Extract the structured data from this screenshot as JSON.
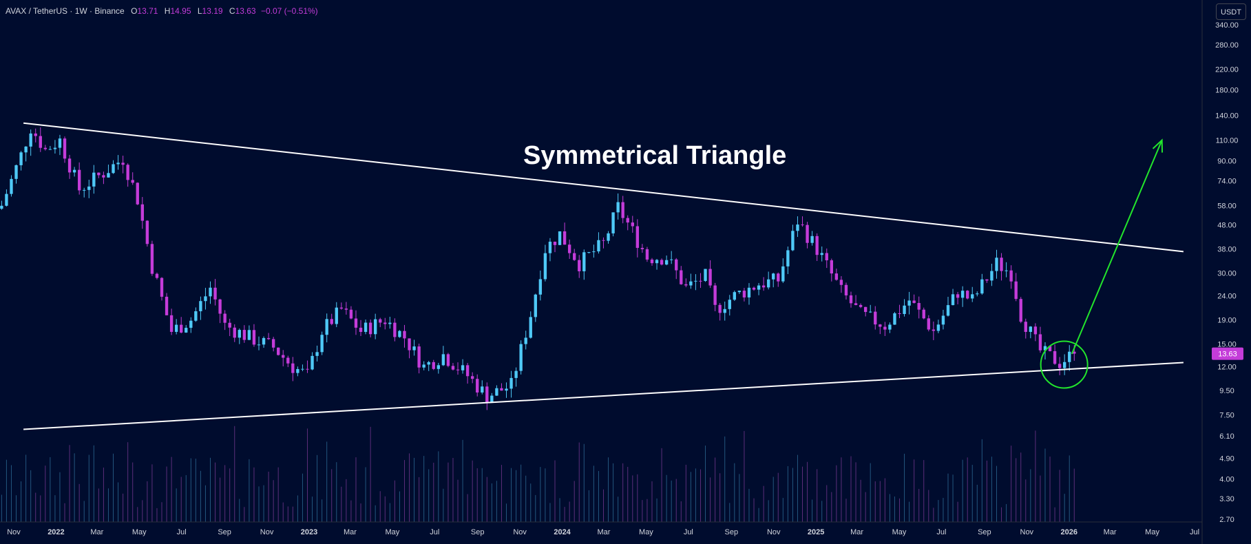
{
  "legend": {
    "symbol": "AVAX / TetherUS · 1W · Binance",
    "o_key": "O",
    "o_val": "13.71",
    "h_key": "H",
    "h_val": "14.95",
    "l_key": "L",
    "l_val": "13.19",
    "c_key": "C",
    "c_val": "13.63",
    "change": "−0.07 (−0.51%)"
  },
  "currency_button": "USDT",
  "annotation_title": "Symmetrical Triangle",
  "colors": {
    "background": "#000c2e",
    "bull": "#4fc9f7",
    "bear": "#c43cd9",
    "trendline": "#ffffff",
    "projection": "#22e52c",
    "last_price_bg": "#c43cd9"
  },
  "chart_data": {
    "type": "candlestick",
    "scale": "log",
    "interval": "1W",
    "ylim": [
      2.7,
      350
    ],
    "y_ticks": [
      340,
      280,
      220,
      180,
      140,
      110,
      90,
      74,
      58,
      48,
      38,
      30,
      24,
      19,
      15,
      12,
      9.5,
      7.5,
      6.1,
      4.9,
      4.0,
      3.3,
      2.7
    ],
    "y_tick_labels": [
      "340.00",
      "280.00",
      "220.00",
      "180.00",
      "140.00",
      "110.00",
      "90.00",
      "74.00",
      "58.00",
      "48.00",
      "38.00",
      "30.00",
      "24.00",
      "19.00",
      "15.00",
      "12.00",
      "9.50",
      "7.50",
      "6.10",
      "4.90",
      "4.00",
      "3.30",
      "2.70"
    ],
    "x_ticks": [
      {
        "date": "2021-11-01",
        "label": "Nov"
      },
      {
        "date": "2022-01-01",
        "label": "2022"
      },
      {
        "date": "2022-03-01",
        "label": "Mar"
      },
      {
        "date": "2022-05-01",
        "label": "May"
      },
      {
        "date": "2022-07-01",
        "label": "Jul"
      },
      {
        "date": "2022-09-01",
        "label": "Sep"
      },
      {
        "date": "2022-11-01",
        "label": "Nov"
      },
      {
        "date": "2023-01-01",
        "label": "2023"
      },
      {
        "date": "2023-03-01",
        "label": "Mar"
      },
      {
        "date": "2023-05-01",
        "label": "May"
      },
      {
        "date": "2023-07-01",
        "label": "Jul"
      },
      {
        "date": "2023-09-01",
        "label": "Sep"
      },
      {
        "date": "2023-11-01",
        "label": "Nov"
      },
      {
        "date": "2024-01-01",
        "label": "2024"
      },
      {
        "date": "2024-03-01",
        "label": "Mar"
      },
      {
        "date": "2024-05-01",
        "label": "May"
      },
      {
        "date": "2024-07-01",
        "label": "Jul"
      },
      {
        "date": "2024-09-01",
        "label": "Sep"
      },
      {
        "date": "2024-11-01",
        "label": "Nov"
      },
      {
        "date": "2025-01-01",
        "label": "2025"
      },
      {
        "date": "2025-03-01",
        "label": "Mar"
      },
      {
        "date": "2025-05-01",
        "label": "May"
      },
      {
        "date": "2025-07-01",
        "label": "Jul"
      },
      {
        "date": "2025-09-01",
        "label": "Sep"
      },
      {
        "date": "2025-11-01",
        "label": "Nov"
      },
      {
        "date": "2026-01-01",
        "label": "2026"
      },
      {
        "date": "2026-03-01",
        "label": "Mar"
      },
      {
        "date": "2026-05-01",
        "label": "May"
      },
      {
        "date": "2026-07-01",
        "label": "Jul"
      }
    ],
    "anchors": [
      {
        "date": "2021-10-11",
        "price": 58
      },
      {
        "date": "2021-11-08",
        "price": 95
      },
      {
        "date": "2021-11-22",
        "price": 125
      },
      {
        "date": "2021-12-13",
        "price": 100
      },
      {
        "date": "2022-01-03",
        "price": 110
      },
      {
        "date": "2022-01-31",
        "price": 68
      },
      {
        "date": "2022-03-07",
        "price": 80
      },
      {
        "date": "2022-04-04",
        "price": 92
      },
      {
        "date": "2022-04-25",
        "price": 62
      },
      {
        "date": "2022-05-16",
        "price": 32
      },
      {
        "date": "2022-06-13",
        "price": 17
      },
      {
        "date": "2022-07-11",
        "price": 19
      },
      {
        "date": "2022-08-08",
        "price": 26
      },
      {
        "date": "2022-08-29",
        "price": 18
      },
      {
        "date": "2022-10-03",
        "price": 16
      },
      {
        "date": "2022-11-07",
        "price": 14.5
      },
      {
        "date": "2022-12-05",
        "price": 12
      },
      {
        "date": "2022-12-26",
        "price": 11
      },
      {
        "date": "2023-01-16",
        "price": 17
      },
      {
        "date": "2023-02-13",
        "price": 21
      },
      {
        "date": "2023-03-13",
        "price": 17
      },
      {
        "date": "2023-04-17",
        "price": 19
      },
      {
        "date": "2023-05-15",
        "price": 16
      },
      {
        "date": "2023-06-12",
        "price": 12
      },
      {
        "date": "2023-07-10",
        "price": 13.5
      },
      {
        "date": "2023-08-14",
        "price": 11
      },
      {
        "date": "2023-09-11",
        "price": 9.0
      },
      {
        "date": "2023-10-16",
        "price": 10
      },
      {
        "date": "2023-11-13",
        "price": 20
      },
      {
        "date": "2023-12-04",
        "price": 38
      },
      {
        "date": "2023-12-25",
        "price": 44
      },
      {
        "date": "2024-01-22",
        "price": 33
      },
      {
        "date": "2024-02-26",
        "price": 40
      },
      {
        "date": "2024-03-18",
        "price": 57
      },
      {
        "date": "2024-04-08",
        "price": 45
      },
      {
        "date": "2024-04-29",
        "price": 35
      },
      {
        "date": "2024-05-27",
        "price": 35
      },
      {
        "date": "2024-06-24",
        "price": 26
      },
      {
        "date": "2024-07-22",
        "price": 29
      },
      {
        "date": "2024-08-05",
        "price": 21
      },
      {
        "date": "2024-09-02",
        "price": 24
      },
      {
        "date": "2024-10-07",
        "price": 27
      },
      {
        "date": "2024-11-04",
        "price": 28
      },
      {
        "date": "2024-12-02",
        "price": 50
      },
      {
        "date": "2024-12-30",
        "price": 38
      },
      {
        "date": "2025-02-03",
        "price": 25
      },
      {
        "date": "2025-03-03",
        "price": 20
      },
      {
        "date": "2025-04-07",
        "price": 18
      },
      {
        "date": "2025-05-12",
        "price": 23
      },
      {
        "date": "2025-06-16",
        "price": 17
      },
      {
        "date": "2025-07-21",
        "price": 25
      },
      {
        "date": "2025-08-11",
        "price": 23
      },
      {
        "date": "2025-09-15",
        "price": 33
      },
      {
        "date": "2025-10-06",
        "price": 30
      },
      {
        "date": "2025-10-20",
        "price": 20
      },
      {
        "date": "2025-11-17",
        "price": 14
      },
      {
        "date": "2025-12-15",
        "price": 12.5
      },
      {
        "date": "2026-01-05",
        "price": 13.63
      }
    ],
    "last_price": 13.63,
    "last_price_label": "13.63",
    "trendlines": [
      {
        "name": "resistance",
        "from": {
          "date": "2021-11-15",
          "price": 130
        },
        "to": {
          "date": "2026-06-15",
          "price": 37
        }
      },
      {
        "name": "support",
        "from": {
          "date": "2021-11-15",
          "price": 6.5
        },
        "to": {
          "date": "2026-06-15",
          "price": 12.5
        }
      },
      {
        "name": "projection",
        "from": {
          "date": "2026-01-05",
          "price": 13.6
        },
        "to": {
          "date": "2026-05-15",
          "price": 110
        }
      }
    ],
    "highlight": {
      "date": "2025-12-22",
      "price": 12.5
    }
  }
}
